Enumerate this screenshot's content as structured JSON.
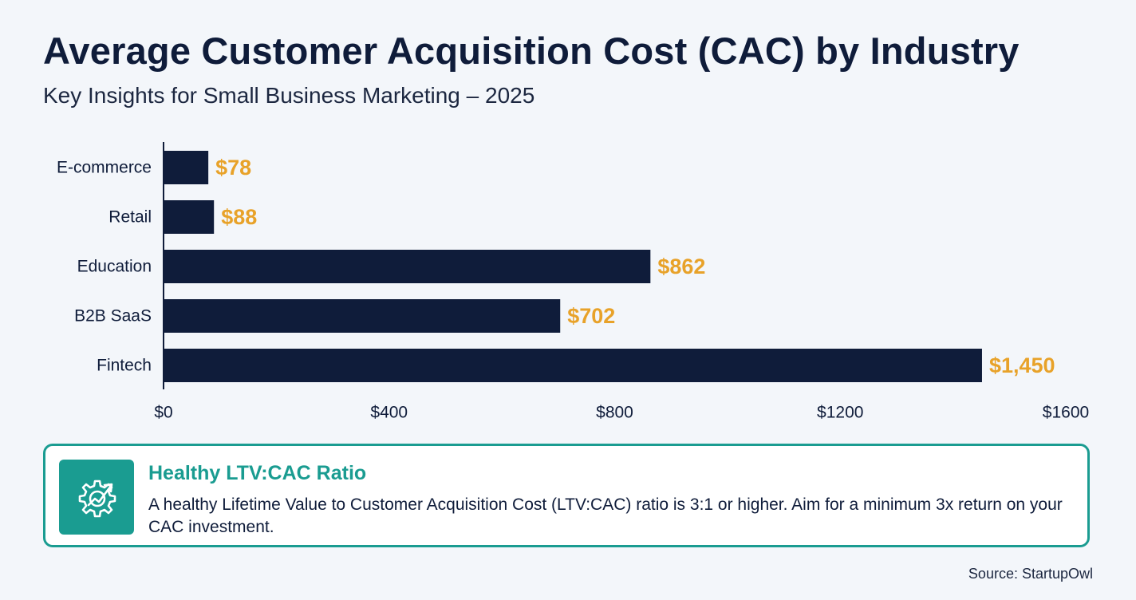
{
  "header": {
    "title": "Average Customer Acquisition Cost (CAC) by Industry",
    "subtitle": "Key Insights for Small Business Marketing – 2025"
  },
  "chart_data": {
    "type": "bar",
    "orientation": "horizontal",
    "categories": [
      "E-commerce",
      "Retail",
      "Education",
      "B2B SaaS",
      "Fintech"
    ],
    "values": [
      78,
      88,
      862,
      702,
      1450
    ],
    "value_labels": [
      "$78",
      "$88",
      "$862",
      "$702",
      "$1,450"
    ],
    "xlim": [
      0,
      1600
    ],
    "x_ticks": [
      0,
      400,
      800,
      1200,
      1600
    ],
    "x_tick_labels": [
      "$0",
      "$400",
      "$800",
      "$1200",
      "$1600"
    ],
    "grid": false,
    "bar_color": "#0f1c3a",
    "label_color": "#e8a229"
  },
  "callout": {
    "icon": "gear-growth-arrow-icon",
    "title": "Healthy LTV:CAC Ratio",
    "text": "A healthy Lifetime Value to Customer Acquisition Cost (LTV:CAC) ratio is 3:1 or higher. Aim for a minimum 3x return on your CAC investment.",
    "accent_color": "#1a9c91"
  },
  "footer": {
    "source": "Source: StartupOwl"
  }
}
